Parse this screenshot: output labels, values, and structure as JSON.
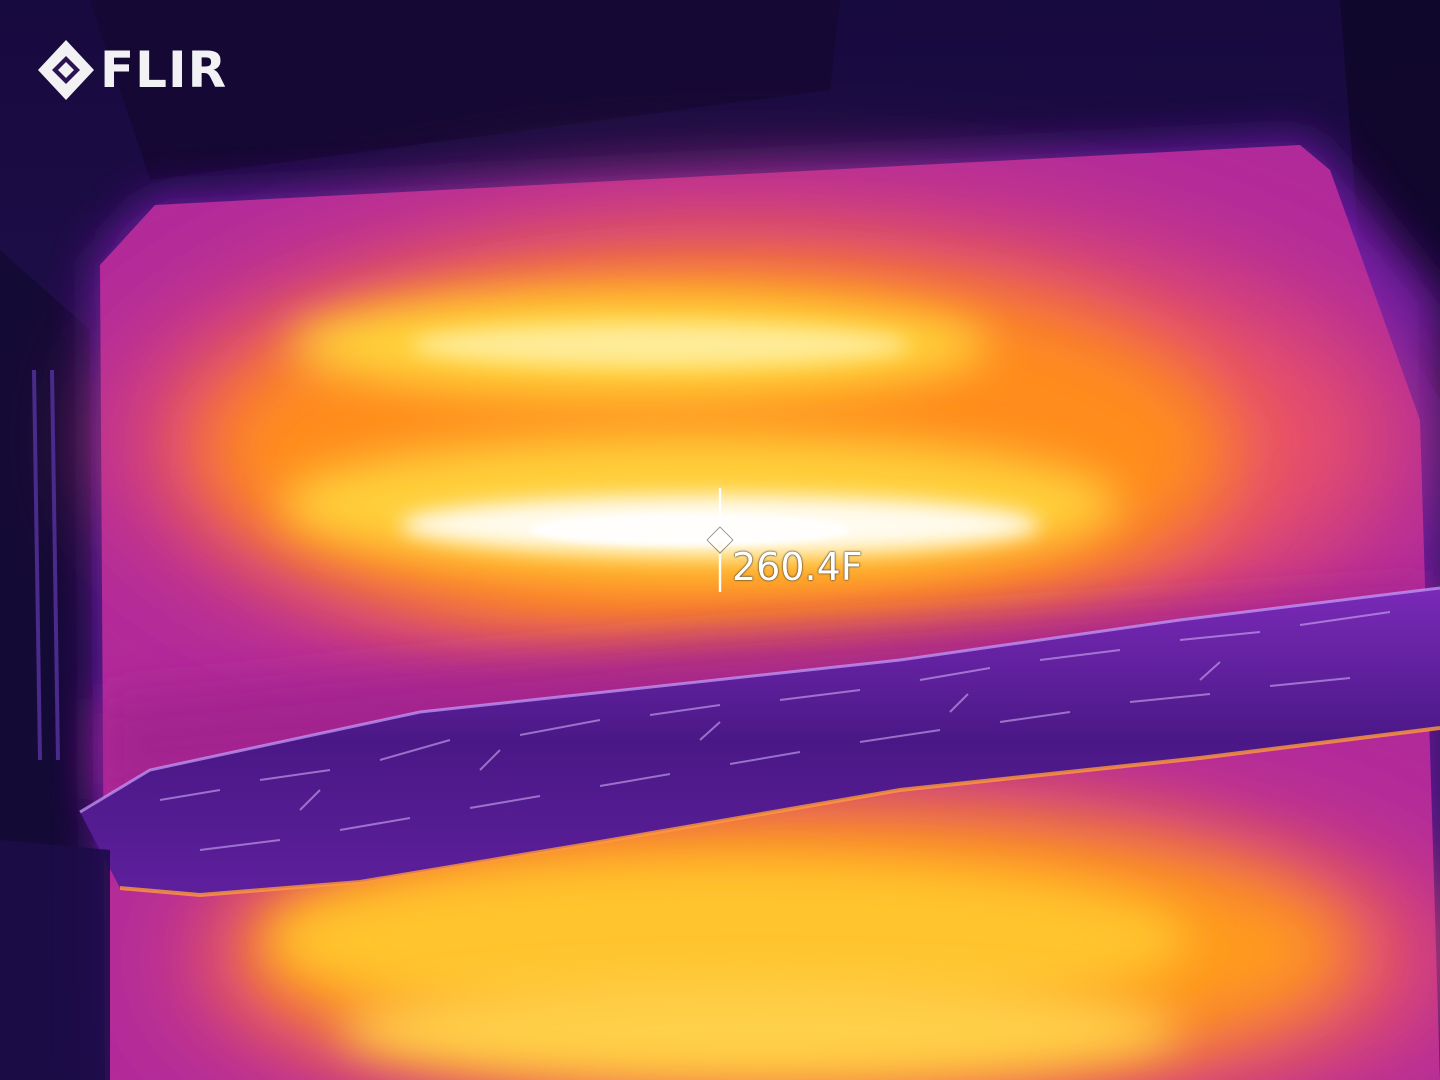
{
  "overlay": {
    "brand": "FLIR",
    "spot_temperature": "260.4F"
  },
  "icons": {
    "logo": "flir-diamond-logo-icon",
    "spot_meter": "crosshair-spot-meter-icon"
  },
  "palette": {
    "name": "iron",
    "cold": "#120734",
    "cool": "#6a14a8",
    "mid": "#d1297d",
    "warm": "#ff8c14",
    "hot": "#ffd23c",
    "hottest": "#fffbee"
  }
}
